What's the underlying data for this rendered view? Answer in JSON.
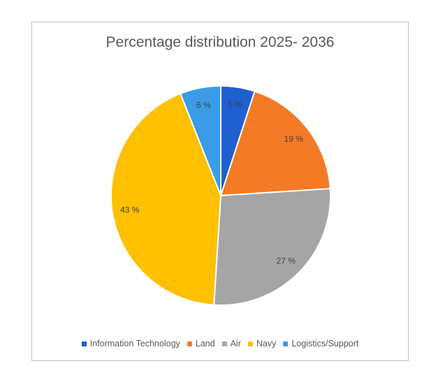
{
  "chart_data": {
    "type": "pie",
    "title": "Percentage distribution 2025- 2036",
    "categories": [
      "Information Technology",
      "Land",
      "Air",
      "Navy",
      "Logistics/Support"
    ],
    "values": [
      5,
      19,
      27,
      43,
      6
    ],
    "data_labels": [
      "5 %",
      "19 %",
      "27 %",
      "43 %",
      "6 %"
    ],
    "colors": [
      "#1f5fcf",
      "#f57a25",
      "#a5a5a5",
      "#ffc000",
      "#3a9ce6"
    ],
    "legend_position": "bottom",
    "start_angle": "12 o'clock, clockwise"
  }
}
